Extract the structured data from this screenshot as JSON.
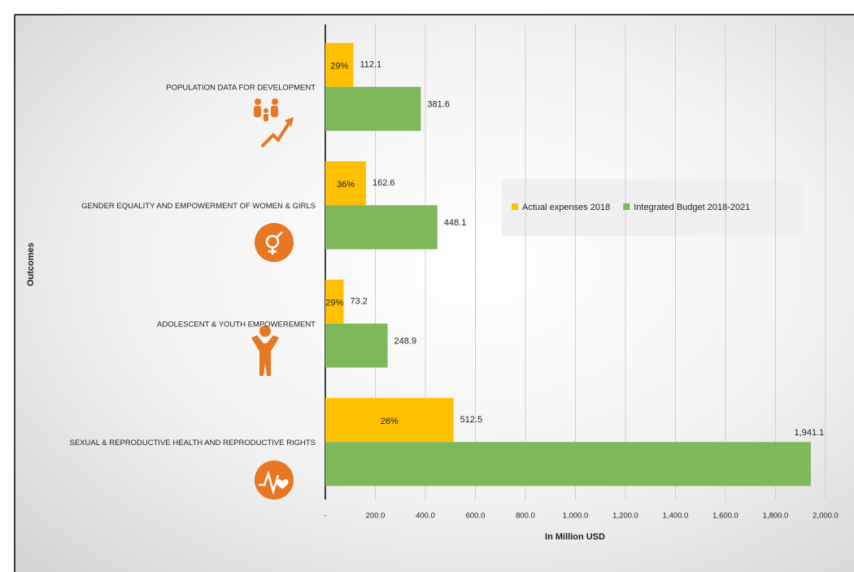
{
  "chart_data": {
    "type": "hbar",
    "categories": [
      "POPULATION DATA FOR DEVELOPMENT",
      "GENDER EQUALITY AND EMPOWERMENT OF WOMEN & GIRLS",
      "ADOLESCENT & YOUTH EMPOWEREMENT",
      "SEXUAL & REPRODUCTIVE HEALTH AND REPRODUCTIVE RIGHTS"
    ],
    "series": [
      {
        "name": "Actual expenses 2018",
        "color": "#ffc000",
        "values": [
          112.1,
          162.6,
          73.2,
          512.5
        ]
      },
      {
        "name": "Integrated Budget 2018-2021",
        "color": "#7db85a",
        "values": [
          381.6,
          448.1,
          248.9,
          1941.1
        ],
        "value_labels": [
          "381.6",
          "448.1",
          "248.9",
          "1,941.1"
        ]
      }
    ],
    "shares": {
      "values": [
        29,
        36,
        29,
        26
      ],
      "value_labels": [
        "29%",
        "36%",
        "29%",
        "26%"
      ]
    },
    "xlabel": "In Million USD",
    "ylabel": "Outcomes",
    "xlim": [
      0,
      2000
    ],
    "xticks": [
      {
        "value": 0,
        "label": "-"
      },
      {
        "value": 200,
        "label": "200.0"
      },
      {
        "value": 400,
        "label": "400.0"
      },
      {
        "value": 600,
        "label": "600.0"
      },
      {
        "value": 800,
        "label": "800.0"
      },
      {
        "value": 1000,
        "label": "1,000.0"
      },
      {
        "value": 1200,
        "label": "1,200.0"
      },
      {
        "value": 1400,
        "label": "1,400.0"
      },
      {
        "value": 1600,
        "label": "1,600.0"
      },
      {
        "value": 1800,
        "label": "1,800.0"
      },
      {
        "value": 2000,
        "label": "2,000.0"
      }
    ],
    "grid": true,
    "legend": "upper right"
  }
}
